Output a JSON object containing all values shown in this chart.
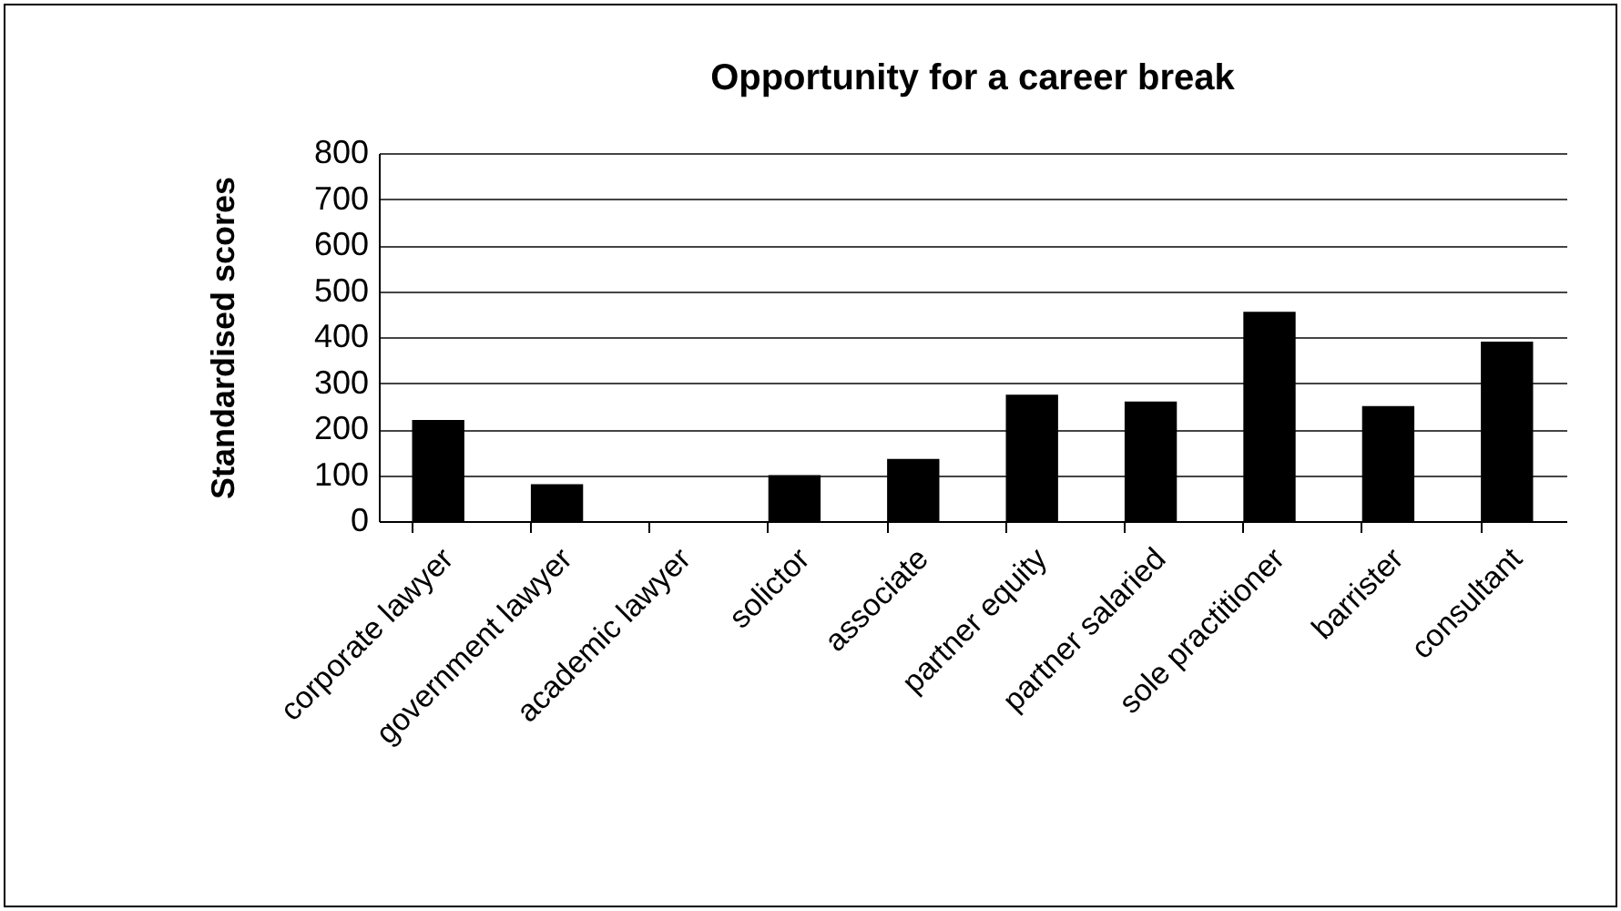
{
  "chart_data": {
    "type": "bar",
    "title": "Opportunity for a career break",
    "ylabel": "Standardised scores",
    "categories": [
      "corporate lawyer",
      "government lawyer",
      "academic lawyer",
      "solictor",
      "associate",
      "partner equity",
      "partner salaried",
      "sole practitioner",
      "barrister",
      "consultant"
    ],
    "values": [
      220,
      80,
      0,
      100,
      135,
      275,
      260,
      455,
      250,
      390
    ],
    "color": "#000000",
    "ylim": [
      0,
      800
    ],
    "yticks": [
      0,
      100,
      200,
      300,
      400,
      500,
      600,
      700,
      800
    ],
    "grid": "y"
  }
}
